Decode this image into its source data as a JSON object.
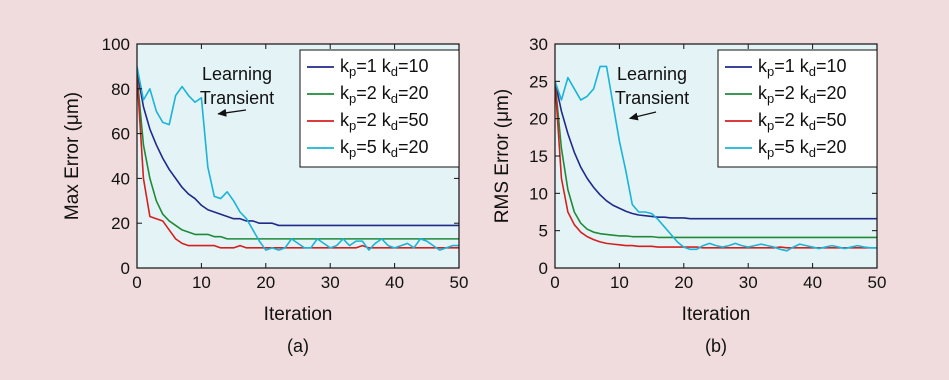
{
  "chart_data": [
    {
      "id": "a",
      "type": "line",
      "caption": "(a)",
      "xlabel": "Iteration",
      "ylabel": "Max Error (μm)",
      "xlim": [
        0,
        50
      ],
      "ylim": [
        0,
        100
      ],
      "xticks": [
        "0",
        "10",
        "20",
        "30",
        "40",
        "50"
      ],
      "yticks": [
        "0",
        "20",
        "40",
        "60",
        "80",
        "100"
      ],
      "grid": false,
      "legend_position": "top-right",
      "annotation": {
        "lines": [
          "Learning",
          "Transient"
        ],
        "arrow_to": [
          12,
          67
        ]
      },
      "x": [
        0,
        1,
        2,
        3,
        4,
        5,
        6,
        7,
        8,
        9,
        10,
        11,
        12,
        13,
        14,
        15,
        16,
        17,
        18,
        19,
        20,
        21,
        22,
        23,
        24,
        25,
        26,
        27,
        28,
        29,
        30,
        31,
        32,
        33,
        34,
        35,
        36,
        37,
        38,
        39,
        40,
        41,
        42,
        43,
        44,
        45,
        46,
        47,
        48,
        49,
        50
      ],
      "series": [
        {
          "sub_p": "p",
          "sub_d": "d",
          "kp": "1",
          "kd": "10",
          "color": "#1f2a8a",
          "values": [
            88,
            72,
            62,
            55,
            49,
            44,
            40,
            36,
            33,
            31,
            28,
            26,
            25,
            24,
            23,
            22,
            22,
            21,
            21,
            20,
            20,
            20,
            19,
            19,
            19,
            19,
            19,
            19,
            19,
            19,
            19,
            19,
            19,
            19,
            19,
            19,
            19,
            19,
            19,
            19,
            19,
            19,
            19,
            19,
            19,
            19,
            19,
            19,
            19,
            19,
            19
          ]
        },
        {
          "sub_p": "p",
          "sub_d": "d",
          "kp": "2",
          "kd": "20",
          "color": "#1f8a3a",
          "values": [
            86,
            55,
            40,
            30,
            24,
            21,
            19,
            17,
            16,
            15,
            15,
            15,
            14,
            14,
            13,
            13,
            13,
            13,
            13,
            13,
            13,
            13,
            13,
            13,
            13,
            13,
            13,
            13,
            13,
            13,
            13,
            13,
            13,
            13,
            13,
            13,
            13,
            13,
            13,
            13,
            13,
            13,
            13,
            13,
            13,
            13,
            13,
            13,
            13,
            13,
            13
          ]
        },
        {
          "sub_p": "p",
          "sub_d": "d",
          "kp": "2",
          "kd": "50",
          "color": "#d42020",
          "values": [
            86,
            40,
            23,
            22,
            21,
            17,
            13,
            11,
            10,
            10,
            10,
            10,
            10,
            9,
            9,
            9,
            10,
            9,
            9,
            9,
            9,
            9,
            9,
            9,
            9,
            9,
            9,
            9,
            9,
            9,
            9,
            9,
            9,
            9,
            9,
            10,
            9,
            9,
            9,
            9,
            9,
            9,
            9,
            9,
            9,
            9,
            9,
            9,
            9,
            9,
            9
          ]
        },
        {
          "sub_p": "p",
          "sub_d": "d",
          "kp": "5",
          "kd": "20",
          "color": "#19b4d8",
          "values": [
            90,
            75,
            80,
            70,
            65,
            64,
            77,
            81,
            77,
            74,
            76,
            45,
            32,
            31,
            34,
            30,
            25,
            22,
            17,
            12,
            8,
            9,
            8,
            9,
            13,
            11,
            9,
            9,
            13,
            11,
            9,
            10,
            13,
            10,
            12,
            12,
            8,
            11,
            13,
            10,
            9,
            10,
            11,
            9,
            13,
            12,
            10,
            8,
            9,
            10,
            10
          ]
        }
      ]
    },
    {
      "id": "b",
      "type": "line",
      "caption": "(b)",
      "xlabel": "Iteration",
      "ylabel": "RMS Error (μm)",
      "xlim": [
        0,
        50
      ],
      "ylim": [
        0,
        30
      ],
      "xticks": [
        "0",
        "10",
        "20",
        "30",
        "40",
        "50"
      ],
      "yticks": [
        "0",
        "5",
        "10",
        "15",
        "20",
        "25",
        "30"
      ],
      "grid": false,
      "legend_position": "top-right",
      "annotation": {
        "lines": [
          "Learning",
          "Transient"
        ],
        "arrow_to": [
          11,
          19.5
        ]
      },
      "x": [
        0,
        1,
        2,
        3,
        4,
        5,
        6,
        7,
        8,
        9,
        10,
        11,
        12,
        13,
        14,
        15,
        16,
        17,
        18,
        19,
        20,
        21,
        22,
        23,
        24,
        25,
        26,
        27,
        28,
        29,
        30,
        31,
        32,
        33,
        34,
        35,
        36,
        37,
        38,
        39,
        40,
        41,
        42,
        43,
        44,
        45,
        46,
        47,
        48,
        49,
        50
      ],
      "series": [
        {
          "sub_p": "p",
          "sub_d": "d",
          "kp": "1",
          "kd": "10",
          "color": "#1f2a8a",
          "values": [
            25,
            21,
            18,
            15.5,
            13.5,
            12,
            10.8,
            9.8,
            9,
            8.4,
            8,
            7.6,
            7.3,
            7.1,
            7,
            6.9,
            6.8,
            6.8,
            6.7,
            6.7,
            6.7,
            6.6,
            6.6,
            6.6,
            6.6,
            6.6,
            6.6,
            6.6,
            6.6,
            6.6,
            6.6,
            6.6,
            6.6,
            6.6,
            6.6,
            6.6,
            6.6,
            6.6,
            6.6,
            6.6,
            6.6,
            6.6,
            6.6,
            6.6,
            6.6,
            6.6,
            6.6,
            6.6,
            6.6,
            6.6,
            6.6
          ]
        },
        {
          "sub_p": "p",
          "sub_d": "d",
          "kp": "2",
          "kd": "20",
          "color": "#1f8a3a",
          "values": [
            25,
            16,
            10.5,
            7.5,
            6,
            5.2,
            4.8,
            4.6,
            4.5,
            4.4,
            4.3,
            4.3,
            4.2,
            4.2,
            4.2,
            4.2,
            4.1,
            4.1,
            4.1,
            4.1,
            4.1,
            4.1,
            4.1,
            4.1,
            4.1,
            4.1,
            4.1,
            4.1,
            4.1,
            4.1,
            4.1,
            4.1,
            4.1,
            4.1,
            4.1,
            4.1,
            4.1,
            4.1,
            4.1,
            4.1,
            4.1,
            4.1,
            4.1,
            4.1,
            4.1,
            4.1,
            4.1,
            4.1,
            4.1,
            4.1,
            4.1
          ]
        },
        {
          "sub_p": "p",
          "sub_d": "d",
          "kp": "2",
          "kd": "50",
          "color": "#d42020",
          "values": [
            25,
            12,
            7.5,
            5.8,
            4.8,
            4.2,
            3.8,
            3.5,
            3.3,
            3.2,
            3.1,
            3,
            3,
            2.9,
            2.9,
            2.9,
            2.8,
            2.8,
            2.8,
            2.8,
            2.8,
            2.8,
            2.8,
            2.7,
            2.7,
            2.7,
            2.7,
            2.7,
            2.7,
            2.7,
            2.7,
            2.7,
            2.7,
            2.7,
            2.7,
            2.8,
            2.7,
            2.7,
            2.7,
            2.7,
            2.7,
            2.7,
            2.7,
            2.7,
            2.7,
            2.7,
            2.7,
            2.7,
            2.7,
            2.7,
            2.7
          ]
        },
        {
          "sub_p": "p",
          "sub_d": "d",
          "kp": "5",
          "kd": "20",
          "color": "#19b4d8",
          "values": [
            25,
            22.5,
            25.5,
            24,
            22.5,
            23,
            24,
            27,
            27,
            22,
            17,
            13,
            8.5,
            7.5,
            7.5,
            7.3,
            6.5,
            5.5,
            4.5,
            3.5,
            2.8,
            2.5,
            2.5,
            3,
            3.3,
            3,
            2.8,
            3,
            3.3,
            3,
            2.8,
            3,
            3.2,
            3,
            2.8,
            2.5,
            2.3,
            2.8,
            3.2,
            3,
            2.8,
            2.6,
            2.8,
            3,
            2.8,
            2.6,
            2.8,
            3,
            2.8,
            2.7,
            2.7
          ]
        }
      ]
    }
  ]
}
